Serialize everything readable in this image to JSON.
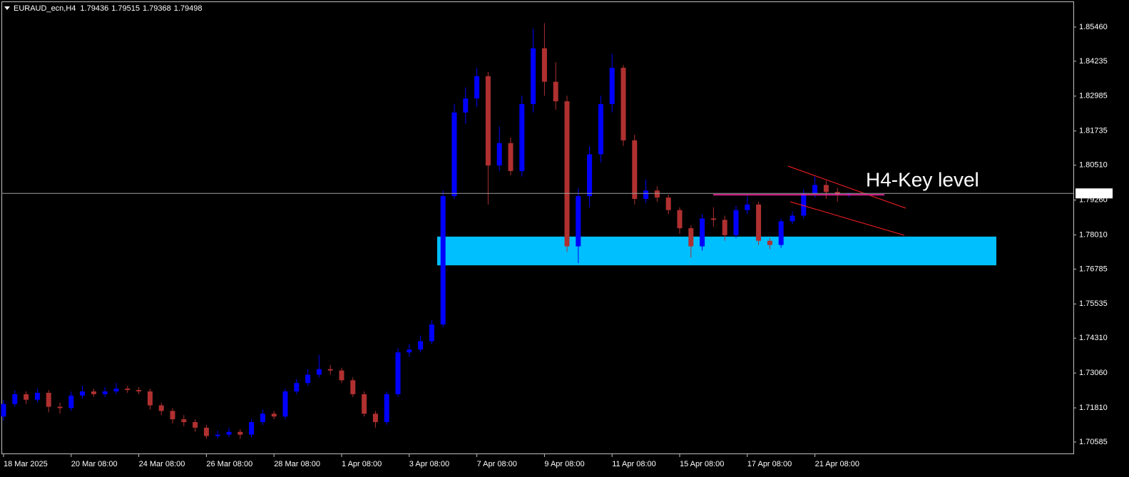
{
  "chart_data": {
    "type": "candlestick",
    "title": "EURAUD_ecn,H4",
    "header_values": [
      1.79436,
      1.79515,
      1.79368,
      1.79498
    ],
    "categories": [
      "18 Mar 2025",
      null,
      null,
      null,
      null,
      null,
      "20 Mar 08:00",
      null,
      null,
      null,
      null,
      null,
      "24 Mar 08:00",
      null,
      null,
      null,
      null,
      null,
      "26 Mar 08:00",
      null,
      null,
      null,
      null,
      null,
      "28 Mar 08:00",
      null,
      null,
      null,
      null,
      null,
      "1 Apr 08:00",
      null,
      null,
      null,
      null,
      null,
      "3 Apr 08:00",
      null,
      null,
      null,
      null,
      null,
      "7 Apr 08:00",
      null,
      null,
      null,
      null,
      null,
      "9 Apr 08:00",
      null,
      null,
      null,
      null,
      null,
      "11 Apr 08:00",
      null,
      null,
      null,
      null,
      null,
      "15 Apr 08:00",
      null,
      null,
      null,
      null,
      null,
      "17 Apr 08:00",
      null,
      null,
      null,
      null,
      null,
      "21 Apr 08:00",
      null,
      null,
      null
    ],
    "open": [
      1.715,
      1.7195,
      1.723,
      1.721,
      1.7235,
      1.7185,
      1.718,
      1.7225,
      1.724,
      1.723,
      1.724,
      1.725,
      1.7245,
      1.724,
      1.719,
      1.717,
      1.714,
      1.713,
      1.711,
      1.708,
      1.7085,
      1.7095,
      1.7085,
      1.713,
      1.716,
      1.715,
      1.724,
      1.727,
      1.73,
      1.732,
      1.7315,
      1.728,
      1.723,
      1.716,
      1.713,
      1.723,
      1.738,
      1.739,
      1.742,
      1.748,
      1.794,
      1.824,
      1.829,
      1.837,
      1.805,
      1.813,
      1.803,
      1.827,
      1.847,
      1.835,
      1.828,
      1.776,
      1.794,
      1.809,
      1.827,
      1.84,
      1.814,
      1.793,
      1.796,
      1.7935,
      1.789,
      1.7825,
      1.776,
      1.786,
      1.7855,
      1.78,
      1.789,
      1.791,
      1.778,
      1.7765,
      1.785,
      1.787,
      1.795,
      1.798,
      1.7955,
      1.79436
    ],
    "high": [
      1.721,
      1.7245,
      1.724,
      1.725,
      1.7245,
      1.72,
      1.724,
      1.726,
      1.725,
      1.7255,
      1.727,
      1.726,
      1.7255,
      1.725,
      1.72,
      1.718,
      1.7155,
      1.714,
      1.712,
      1.71,
      1.711,
      1.7105,
      1.714,
      1.7175,
      1.717,
      1.725,
      1.7285,
      1.732,
      1.737,
      1.7335,
      1.7325,
      1.729,
      1.724,
      1.717,
      1.724,
      1.7395,
      1.741,
      1.744,
      1.7495,
      1.796,
      1.827,
      1.833,
      1.84,
      1.8385,
      1.819,
      1.815,
      1.83,
      1.854,
      1.856,
      1.842,
      1.83,
      1.797,
      1.812,
      1.83,
      1.845,
      1.841,
      1.816,
      1.8,
      1.7975,
      1.7945,
      1.79,
      1.7835,
      1.7875,
      1.79,
      1.787,
      1.7905,
      1.794,
      1.792,
      1.779,
      1.786,
      1.7885,
      1.7965,
      1.801,
      1.7995,
      1.797,
      1.79515
    ],
    "low": [
      1.7135,
      1.7185,
      1.7195,
      1.72,
      1.7165,
      1.716,
      1.717,
      1.7215,
      1.722,
      1.722,
      1.723,
      1.7235,
      1.723,
      1.7175,
      1.7155,
      1.7125,
      1.7115,
      1.7095,
      1.707,
      1.707,
      1.7075,
      1.707,
      1.7075,
      1.712,
      1.714,
      1.714,
      1.723,
      1.726,
      1.729,
      1.73,
      1.727,
      1.722,
      1.715,
      1.711,
      1.712,
      1.722,
      1.7365,
      1.738,
      1.741,
      1.747,
      1.793,
      1.82,
      1.826,
      1.791,
      1.803,
      1.8015,
      1.801,
      1.824,
      1.83,
      1.825,
      1.774,
      1.77,
      1.79,
      1.806,
      1.824,
      1.812,
      1.791,
      1.7915,
      1.792,
      1.7875,
      1.7805,
      1.772,
      1.7745,
      1.783,
      1.778,
      1.779,
      1.7875,
      1.7765,
      1.775,
      1.7755,
      1.784,
      1.786,
      1.7935,
      1.793,
      1.792,
      1.79368
    ],
    "close": [
      1.7195,
      1.723,
      1.721,
      1.7235,
      1.7185,
      1.718,
      1.7225,
      1.724,
      1.723,
      1.724,
      1.725,
      1.7245,
      1.724,
      1.719,
      1.717,
      1.714,
      1.713,
      1.711,
      1.708,
      1.7085,
      1.7095,
      1.7085,
      1.713,
      1.716,
      1.715,
      1.724,
      1.727,
      1.73,
      1.732,
      1.7315,
      1.728,
      1.723,
      1.716,
      1.713,
      1.723,
      1.738,
      1.739,
      1.742,
      1.748,
      1.794,
      1.824,
      1.829,
      1.837,
      1.805,
      1.813,
      1.803,
      1.827,
      1.847,
      1.835,
      1.828,
      1.776,
      1.794,
      1.809,
      1.827,
      1.84,
      1.814,
      1.793,
      1.796,
      1.7935,
      1.789,
      1.7825,
      1.776,
      1.786,
      1.7855,
      1.78,
      1.789,
      1.791,
      1.778,
      1.7765,
      1.785,
      1.787,
      1.795,
      1.798,
      1.7955,
      1.7945,
      1.79498
    ],
    "up_color": "#0000ff",
    "down_color": "#b03030",
    "ylim": [
      1.7015,
      1.86431
    ],
    "yticks": [
      {
        "value": 1.8546,
        "label": "1.85460"
      },
      1.84235,
      1.82985,
      1.81735,
      {
        "value": 1.8051,
        "label": "1.80510"
      },
      {
        "value": 1.7926,
        "label": "1.79260"
      },
      {
        "value": 1.7801,
        "label": "1.78010"
      },
      1.76785,
      1.75535,
      {
        "value": 1.7431,
        "label": "1.74310"
      },
      {
        "value": 1.7306,
        "label": "1.73060"
      },
      {
        "value": 1.7181,
        "label": "1.71810"
      },
      1.70585
    ],
    "current_price": 1.79498,
    "zone": {
      "values": [
        1.7795,
        1.7692
      ],
      "color": "#00bfff"
    },
    "key_level": {
      "label": "H4-Key level",
      "value": 1.7945,
      "color": "#d6248f"
    },
    "trend_color": "#ff2020"
  }
}
